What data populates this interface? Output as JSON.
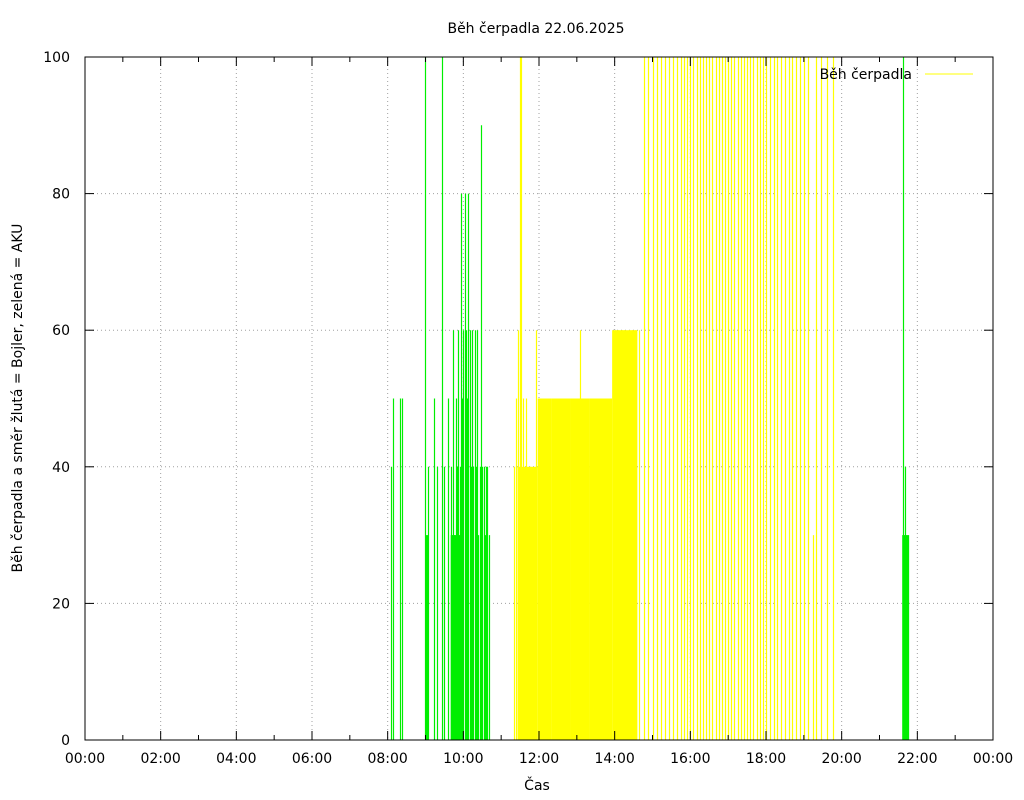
{
  "chart_data": {
    "type": "bar",
    "title": "Běh čerpadla 22.06.2025",
    "xlabel": "Čas",
    "ylabel": "Běh čerpadla a směr žlutá = Bojler, zelená = AKU",
    "xlim": [
      0,
      1440
    ],
    "ylim": [
      0,
      100
    ],
    "x_unit": "minutes from 00:00",
    "x_ticks": [
      "00:00",
      "02:00",
      "04:00",
      "06:00",
      "08:00",
      "10:00",
      "12:00",
      "14:00",
      "16:00",
      "18:00",
      "20:00",
      "22:00",
      "00:00"
    ],
    "y_ticks": [
      "0",
      "20",
      "40",
      "60",
      "80",
      "100"
    ],
    "grid": true,
    "legend_position": "top-right",
    "colors": {
      "bojler": "#ffff00",
      "aku": "#00ee00"
    },
    "series": [
      {
        "name": "Běh čerpadla",
        "color": "#ffff00",
        "bars": [
          {
            "x": 680,
            "y": 40
          },
          {
            "x": 684,
            "y": 50
          },
          {
            "x": 687,
            "y": 60
          },
          {
            "x": 690,
            "y": 100
          },
          {
            "x": 692,
            "y": 100
          },
          {
            "x": 695,
            "y": 50
          },
          {
            "x": 700,
            "y": 50
          },
          {
            "x": 705,
            "y": 40
          },
          {
            "x": 715,
            "y": 60
          },
          {
            "x": 720,
            "y": 50
          },
          {
            "x": 728,
            "y": 50
          },
          {
            "x": 735,
            "y": 40
          },
          {
            "x": 740,
            "y": 50
          },
          {
            "x": 750,
            "y": 50
          },
          {
            "x": 760,
            "y": 50
          },
          {
            "x": 785,
            "y": 60
          },
          {
            "x": 795,
            "y": 40
          },
          {
            "x": 798,
            "y": 40
          },
          {
            "x": 840,
            "y": 60
          },
          {
            "x": 845,
            "y": 60
          },
          {
            "x": 852,
            "y": 60
          },
          {
            "x": 855,
            "y": 60
          },
          {
            "x": 862,
            "y": 60
          },
          {
            "x": 868,
            "y": 60
          },
          {
            "x": 872,
            "y": 60
          },
          {
            "x": 878,
            "y": 60
          },
          {
            "x": 886,
            "y": 100
          },
          {
            "x": 893,
            "y": 100
          },
          {
            "x": 900,
            "y": 100
          },
          {
            "x": 907,
            "y": 100
          },
          {
            "x": 913,
            "y": 100
          },
          {
            "x": 920,
            "y": 100
          },
          {
            "x": 926,
            "y": 100
          },
          {
            "x": 933,
            "y": 100
          },
          {
            "x": 939,
            "y": 100
          },
          {
            "x": 945,
            "y": 100
          },
          {
            "x": 950,
            "y": 100
          },
          {
            "x": 955,
            "y": 100
          },
          {
            "x": 960,
            "y": 100
          },
          {
            "x": 965,
            "y": 100
          },
          {
            "x": 970,
            "y": 100
          },
          {
            "x": 975,
            "y": 100
          },
          {
            "x": 980,
            "y": 100
          },
          {
            "x": 985,
            "y": 100
          },
          {
            "x": 990,
            "y": 100
          },
          {
            "x": 995,
            "y": 100
          },
          {
            "x": 1000,
            "y": 100
          },
          {
            "x": 1005,
            "y": 100
          },
          {
            "x": 1010,
            "y": 100
          },
          {
            "x": 1015,
            "y": 100
          },
          {
            "x": 1020,
            "y": 100
          },
          {
            "x": 1025,
            "y": 100
          },
          {
            "x": 1030,
            "y": 100
          },
          {
            "x": 1035,
            "y": 100
          },
          {
            "x": 1040,
            "y": 100
          },
          {
            "x": 1045,
            "y": 100
          },
          {
            "x": 1050,
            "y": 100
          },
          {
            "x": 1055,
            "y": 100
          },
          {
            "x": 1060,
            "y": 100
          },
          {
            "x": 1065,
            "y": 100
          },
          {
            "x": 1070,
            "y": 100
          },
          {
            "x": 1075,
            "y": 100
          },
          {
            "x": 1080,
            "y": 100
          },
          {
            "x": 1086,
            "y": 100
          },
          {
            "x": 1092,
            "y": 100
          },
          {
            "x": 1098,
            "y": 100
          },
          {
            "x": 1104,
            "y": 100
          },
          {
            "x": 1110,
            "y": 100
          },
          {
            "x": 1116,
            "y": 100
          },
          {
            "x": 1122,
            "y": 100
          },
          {
            "x": 1128,
            "y": 100
          },
          {
            "x": 1134,
            "y": 100
          },
          {
            "x": 1140,
            "y": 100
          },
          {
            "x": 1147,
            "y": 100
          },
          {
            "x": 1154,
            "y": 30
          },
          {
            "x": 1160,
            "y": 100
          },
          {
            "x": 1168,
            "y": 100
          },
          {
            "x": 1176,
            "y": 100
          },
          {
            "x": 1186,
            "y": 100
          }
        ],
        "blocks": [
          {
            "x0": 686,
            "x1": 718,
            "y": 40
          },
          {
            "x0": 718,
            "x1": 740,
            "y": 50
          },
          {
            "x0": 740,
            "x1": 770,
            "y": 50
          },
          {
            "x0": 770,
            "x1": 800,
            "y": 50
          },
          {
            "x0": 800,
            "x1": 836,
            "y": 50
          },
          {
            "x0": 836,
            "x1": 876,
            "y": 60
          }
        ]
      },
      {
        "name": "AKU",
        "color": "#00ee00",
        "bars": [
          {
            "x": 485,
            "y": 40
          },
          {
            "x": 488,
            "y": 50
          },
          {
            "x": 500,
            "y": 50
          },
          {
            "x": 502,
            "y": 50
          },
          {
            "x": 539,
            "y": 100
          },
          {
            "x": 541,
            "y": 30
          },
          {
            "x": 542,
            "y": 30
          },
          {
            "x": 544,
            "y": 40
          },
          {
            "x": 554,
            "y": 50
          },
          {
            "x": 558,
            "y": 40
          },
          {
            "x": 566,
            "y": 100
          },
          {
            "x": 570,
            "y": 40
          },
          {
            "x": 575,
            "y": 50
          },
          {
            "x": 580,
            "y": 40
          },
          {
            "x": 583,
            "y": 60
          },
          {
            "x": 585,
            "y": 30
          },
          {
            "x": 588,
            "y": 50
          },
          {
            "x": 590,
            "y": 40
          },
          {
            "x": 592,
            "y": 60
          },
          {
            "x": 594,
            "y": 40
          },
          {
            "x": 596,
            "y": 80
          },
          {
            "x": 598,
            "y": 50
          },
          {
            "x": 600,
            "y": 60
          },
          {
            "x": 602,
            "y": 80
          },
          {
            "x": 604,
            "y": 60
          },
          {
            "x": 606,
            "y": 50
          },
          {
            "x": 608,
            "y": 80
          },
          {
            "x": 610,
            "y": 60
          },
          {
            "x": 612,
            "y": 40
          },
          {
            "x": 614,
            "y": 60
          },
          {
            "x": 616,
            "y": 40
          },
          {
            "x": 618,
            "y": 60
          },
          {
            "x": 620,
            "y": 40
          },
          {
            "x": 622,
            "y": 60
          },
          {
            "x": 624,
            "y": 30
          },
          {
            "x": 626,
            "y": 40
          },
          {
            "x": 628,
            "y": 90
          },
          {
            "x": 630,
            "y": 40
          },
          {
            "x": 632,
            "y": 40
          },
          {
            "x": 634,
            "y": 30
          },
          {
            "x": 636,
            "y": 40
          },
          {
            "x": 638,
            "y": 40
          },
          {
            "x": 640,
            "y": 30
          },
          {
            "x": 1297,
            "y": 100
          },
          {
            "x": 1300,
            "y": 40
          }
        ],
        "blocks": [
          {
            "x0": 580,
            "x1": 600,
            "y": 30
          },
          {
            "x0": 1296,
            "x1": 1307,
            "y": 30
          }
        ]
      }
    ]
  }
}
